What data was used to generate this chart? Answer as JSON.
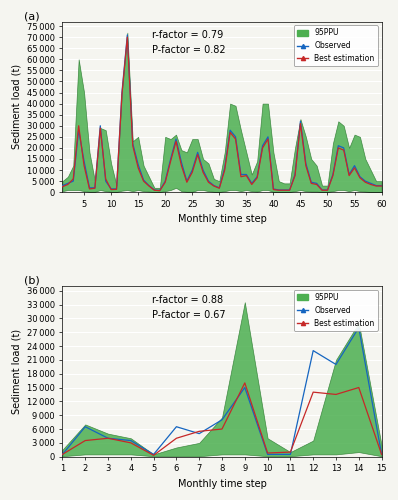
{
  "panel_a": {
    "r_factor": "r-factor = 0.79",
    "p_factor": "P-factor = 0.82",
    "xlabel": "Monthly time step",
    "ylabel": "Sediment load (t)",
    "xticks": [
      5,
      10,
      15,
      20,
      25,
      30,
      35,
      40,
      45,
      50,
      55,
      60
    ],
    "yticks": [
      0,
      5000,
      10000,
      15000,
      20000,
      25000,
      30000,
      35000,
      40000,
      45000,
      50000,
      55000,
      60000,
      65000,
      70000,
      75000
    ],
    "ylim": [
      0,
      77000
    ],
    "xlim": [
      1,
      60
    ],
    "observed": [
      3000,
      4000,
      5000,
      28000,
      14000,
      2000,
      2000,
      30000,
      5000,
      1500,
      1500,
      45000,
      71000,
      22000,
      12500,
      5500,
      3000,
      1000,
      800,
      5000,
      15000,
      24000,
      13500,
      5000,
      10000,
      18000,
      10000,
      5000,
      3000,
      2000,
      11000,
      28000,
      25000,
      8000,
      8000,
      4000,
      7000,
      21000,
      25000,
      1500,
      1000,
      1000,
      1000,
      8000,
      32000,
      13000,
      4500,
      4000,
      1000,
      1000,
      8000,
      21000,
      20000,
      8000,
      12000,
      7000,
      5000,
      4000,
      3000,
      3000
    ],
    "best_estimation": [
      2500,
      3500,
      6000,
      30000,
      12000,
      1500,
      1800,
      29000,
      6000,
      1200,
      1300,
      44000,
      70000,
      21000,
      11000,
      5000,
      2800,
      900,
      700,
      4500,
      14000,
      23000,
      12000,
      4500,
      9000,
      17000,
      9000,
      4500,
      2800,
      1800,
      10000,
      27000,
      24000,
      7000,
      7500,
      3500,
      6500,
      20000,
      24000,
      1200,
      900,
      900,
      900,
      7500,
      31000,
      12000,
      4000,
      3500,
      900,
      900,
      7500,
      20000,
      19000,
      7500,
      11000,
      6500,
      4500,
      3500,
      2800,
      2800
    ],
    "ppu_upper": [
      5000,
      7000,
      12000,
      60000,
      45000,
      18000,
      5000,
      29000,
      28000,
      13000,
      3000,
      46000,
      72000,
      23000,
      25000,
      12000,
      7000,
      2000,
      2000,
      25000,
      24000,
      26000,
      19000,
      18000,
      24000,
      24000,
      15000,
      13000,
      6000,
      5000,
      18000,
      40000,
      39000,
      28000,
      18000,
      8000,
      14000,
      40000,
      40000,
      18000,
      5000,
      4000,
      4000,
      20000,
      33000,
      25000,
      15000,
      12000,
      3000,
      3000,
      22000,
      32000,
      30000,
      20000,
      26000,
      25000,
      15000,
      10000,
      5000,
      5000
    ],
    "ppu_lower": [
      500,
      1000,
      1000,
      1000,
      500,
      200,
      200,
      1000,
      500,
      200,
      100,
      700,
      1000,
      500,
      1000,
      500,
      300,
      100,
      100,
      500,
      1000,
      2000,
      500,
      200,
      200,
      1000,
      1000,
      500,
      200,
      100,
      500,
      1000,
      1000,
      500,
      1000,
      500,
      300,
      1000,
      1000,
      100,
      100,
      100,
      100,
      500,
      1000,
      500,
      300,
      300,
      100,
      100,
      500,
      1000,
      1000,
      500,
      1000,
      500,
      300,
      100,
      100,
      100
    ]
  },
  "panel_b": {
    "r_factor": "r-factor = 0.88",
    "p_factor": "P-factor = 0.67",
    "xlabel": "Monthly time step",
    "ylabel": "Sediment load (t)",
    "xticks": [
      1,
      2,
      3,
      4,
      5,
      6,
      7,
      8,
      9,
      10,
      11,
      12,
      13,
      14,
      15
    ],
    "yticks": [
      0,
      3000,
      6000,
      9000,
      12000,
      15000,
      18000,
      21000,
      24000,
      27000,
      30000,
      33000,
      36000
    ],
    "ylim": [
      0,
      37000
    ],
    "xlim": [
      1,
      15
    ],
    "observed": [
      500,
      6500,
      4000,
      3500,
      500,
      6500,
      5000,
      8000,
      15000,
      500,
      500,
      23000,
      20000,
      28000,
      500
    ],
    "best_estimation": [
      500,
      3500,
      4000,
      3000,
      300,
      4000,
      5500,
      6000,
      16000,
      800,
      1000,
      14000,
      13500,
      15000,
      500
    ],
    "ppu_upper": [
      1500,
      7000,
      5000,
      4000,
      500,
      2000,
      3000,
      8500,
      33500,
      4000,
      1000,
      3500,
      21000,
      29000,
      2500
    ],
    "ppu_lower": [
      100,
      500,
      500,
      500,
      100,
      100,
      100,
      500,
      500,
      100,
      100,
      500,
      500,
      1000,
      100
    ]
  },
  "legend_labels": [
    "95PPU",
    "Observed",
    "Best estimation"
  ],
  "colors": {
    "ppu_fill": "#4caf50",
    "ppu_edge": "#2e7d32",
    "observed": "#1565c0",
    "best_estimation": "#c62828",
    "background": "#f5f5f0"
  },
  "label_a": "(a)",
  "label_b": "(b)"
}
